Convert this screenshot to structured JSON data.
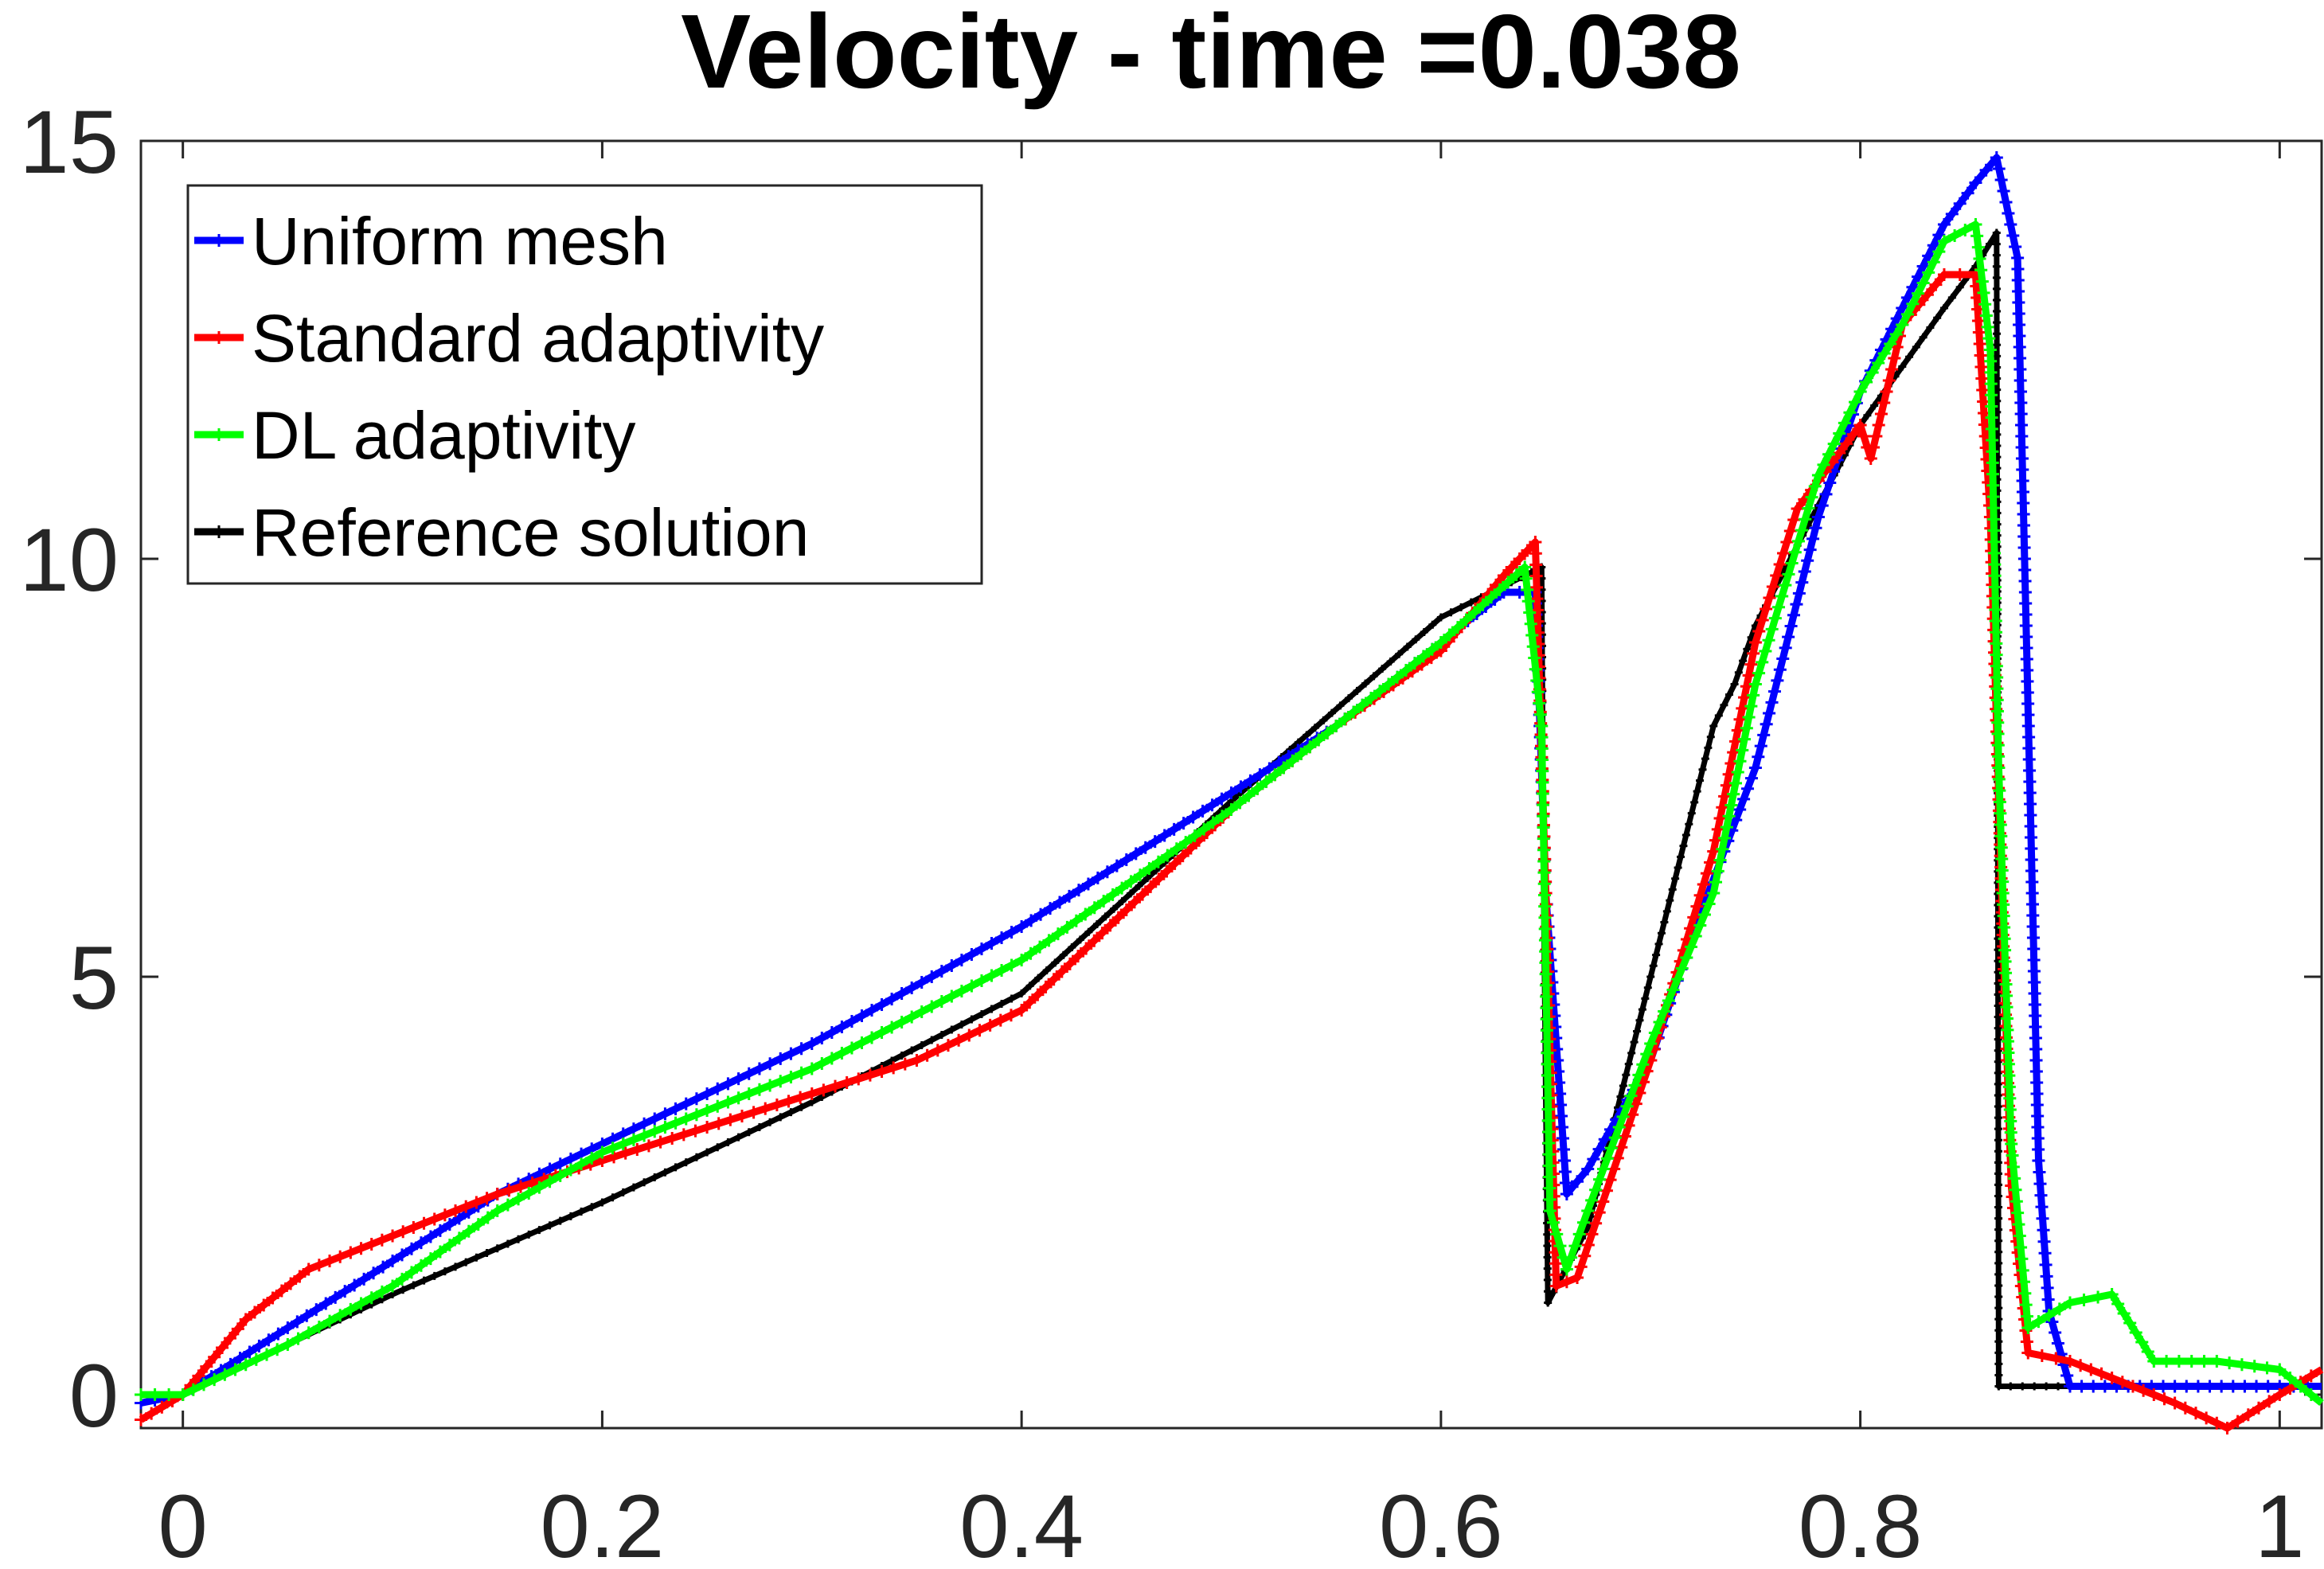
{
  "chart_data": {
    "type": "line",
    "title": "Velocity - time =0.038",
    "xlabel": "",
    "ylabel": "",
    "xlim": [
      -0.02,
      1.02
    ],
    "ylim": [
      -0.4,
      15
    ],
    "xticks": [
      0,
      0.2,
      0.4,
      0.6,
      0.8,
      1
    ],
    "xtick_labels": [
      "0",
      "0.2",
      "0.4",
      "0.6",
      "0.8",
      "1"
    ],
    "yticks": [
      0,
      5,
      10,
      15
    ],
    "ytick_labels": [
      "0",
      "5",
      "10",
      "15"
    ],
    "grid": false,
    "legend_position": "top-left",
    "series": [
      {
        "name": "Uniform mesh",
        "color": "#0000ff",
        "x": [
          -0.02,
          0.0,
          0.05,
          0.1,
          0.15,
          0.2,
          0.3,
          0.4,
          0.5,
          0.55,
          0.6,
          0.63,
          0.645,
          0.65,
          0.66,
          0.67,
          0.7,
          0.72,
          0.75,
          0.78,
          0.8,
          0.82,
          0.84,
          0.855,
          0.865,
          0.875,
          0.885,
          0.89,
          0.9,
          0.95,
          1.0,
          1.02
        ],
        "y": [
          -0.1,
          0.0,
          0.8,
          1.6,
          2.4,
          3.0,
          4.2,
          5.6,
          7.2,
          8.0,
          9.0,
          9.6,
          9.6,
          6.0,
          2.4,
          2.7,
          4.0,
          5.5,
          7.5,
          10.5,
          12.0,
          13.0,
          14.0,
          14.5,
          14.8,
          13.6,
          2.8,
          1.0,
          0.1,
          0.1,
          0.1,
          0.1
        ]
      },
      {
        "name": "Standard adaptivity",
        "color": "#ff0000",
        "x": [
          -0.02,
          0.0,
          0.03,
          0.06,
          0.1,
          0.15,
          0.2,
          0.25,
          0.3,
          0.35,
          0.4,
          0.45,
          0.5,
          0.55,
          0.6,
          0.63,
          0.645,
          0.65,
          0.655,
          0.665,
          0.7,
          0.73,
          0.75,
          0.77,
          0.8,
          0.805,
          0.82,
          0.84,
          0.855,
          0.862,
          0.868,
          0.872,
          0.88,
          0.9,
          0.95,
          0.975,
          1.0,
          1.02
        ],
        "y": [
          -0.3,
          0.0,
          0.9,
          1.5,
          1.9,
          2.4,
          2.8,
          3.2,
          3.6,
          4.0,
          4.6,
          5.8,
          7.0,
          8.0,
          8.9,
          9.8,
          10.2,
          6.0,
          1.3,
          1.4,
          4.0,
          6.5,
          9.0,
          10.6,
          11.6,
          11.2,
          12.8,
          13.4,
          13.4,
          10.5,
          5.5,
          2.5,
          0.5,
          0.4,
          -0.1,
          -0.4,
          0.0,
          0.3
        ]
      },
      {
        "name": "DL adaptivity",
        "color": "#00ff00",
        "x": [
          -0.02,
          0.0,
          0.05,
          0.1,
          0.15,
          0.2,
          0.25,
          0.3,
          0.4,
          0.5,
          0.6,
          0.64,
          0.648,
          0.652,
          0.66,
          0.67,
          0.7,
          0.73,
          0.75,
          0.78,
          0.8,
          0.82,
          0.84,
          0.855,
          0.862,
          0.866,
          0.872,
          0.88,
          0.9,
          0.92,
          0.94,
          0.97,
          1.0,
          1.02
        ],
        "y": [
          0.0,
          0.0,
          0.6,
          1.3,
          2.2,
          2.9,
          3.4,
          3.9,
          5.2,
          7.0,
          9.0,
          9.9,
          8.0,
          2.2,
          1.5,
          2.2,
          4.2,
          6.0,
          8.5,
          11.0,
          12.0,
          12.8,
          13.8,
          14.0,
          12.5,
          7.5,
          3.0,
          0.8,
          1.1,
          1.2,
          0.4,
          0.4,
          0.3,
          -0.1
        ]
      },
      {
        "name": "Reference solution",
        "color": "#000000",
        "x": [
          0.0,
          0.1,
          0.2,
          0.3,
          0.4,
          0.5,
          0.6,
          0.648,
          0.649,
          0.651,
          0.67,
          0.7,
          0.73,
          0.74,
          0.75,
          0.8,
          0.84,
          0.855,
          0.865,
          0.8655,
          0.866,
          0.9,
          0.95,
          1.0
        ],
        "y": [
          0.0,
          1.2,
          2.3,
          3.5,
          4.8,
          7.1,
          9.3,
          9.9,
          6.0,
          1.1,
          2.0,
          5.0,
          8.0,
          8.5,
          9.2,
          11.6,
          13.0,
          13.5,
          13.9,
          8.0,
          0.1,
          0.1,
          0.1,
          0.1
        ]
      }
    ]
  }
}
